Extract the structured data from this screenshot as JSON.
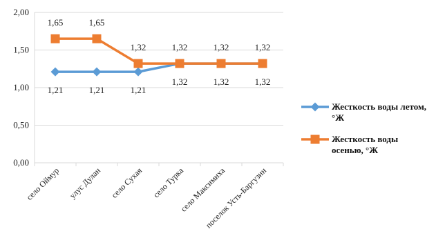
{
  "chart_data": {
    "type": "line",
    "categories": [
      "село Оймур",
      "улус Дулан",
      "село Сухая",
      "село Турка",
      "село Максимиха",
      "поселок Усть-Баргузин"
    ],
    "series": [
      {
        "name": "Жесткость воды летом, °Ж",
        "values": [
          1.21,
          1.21,
          1.21,
          1.32,
          1.32,
          1.32
        ],
        "labels": [
          "1,21",
          "1,21",
          "1,21",
          "1,32",
          "1,32",
          "1,32"
        ],
        "color": "#5B9BD5",
        "marker": "diamond",
        "label_position": "below"
      },
      {
        "name": "Жесткость воды осенью, °Ж",
        "values": [
          1.65,
          1.65,
          1.32,
          1.32,
          1.32,
          1.32
        ],
        "labels": [
          "1,65",
          "1,65",
          "1,32",
          "1,32",
          "1,32",
          "1,32"
        ],
        "color": "#ED7D31",
        "marker": "square",
        "label_position": "above"
      }
    ],
    "y_ticks": [
      "0,00",
      "0,50",
      "1,00",
      "1,50",
      "2,00"
    ],
    "ylim": [
      0,
      2
    ],
    "grid": "horizontal",
    "legend_position": "right",
    "title": "",
    "xlabel": "",
    "ylabel": ""
  }
}
